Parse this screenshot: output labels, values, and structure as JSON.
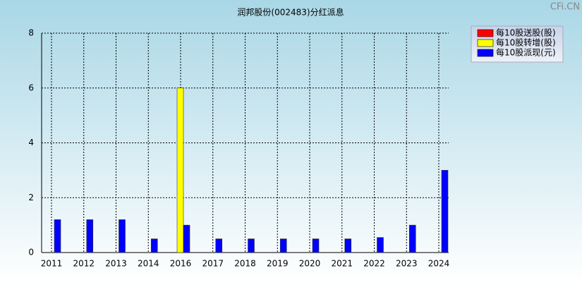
{
  "chart_data": {
    "type": "bar",
    "title": "润邦股份(002483)分红派息",
    "watermark": "CFi.CN",
    "categories": [
      "2011",
      "2012",
      "2013",
      "2014",
      "2016",
      "2017",
      "2018",
      "2019",
      "2020",
      "2021",
      "2022",
      "2023",
      "2024"
    ],
    "series": [
      {
        "name": "每10股送股(股)",
        "color": "#ff0000",
        "values": [
          null,
          null,
          null,
          null,
          null,
          null,
          null,
          null,
          null,
          null,
          null,
          null,
          null
        ]
      },
      {
        "name": "每10股转增(股)",
        "color": "#ffff00",
        "values": [
          null,
          null,
          null,
          null,
          6,
          null,
          null,
          null,
          null,
          null,
          null,
          null,
          null
        ]
      },
      {
        "name": "每10股派现(元)",
        "color": "#0000ff",
        "values": [
          1.2,
          1.2,
          1.2,
          0.5,
          1.0,
          0.5,
          0.5,
          0.5,
          0.5,
          0.5,
          0.55,
          1.0,
          3.0
        ]
      }
    ],
    "ylim": [
      0,
      8
    ],
    "yticks": [
      0,
      2,
      4,
      6,
      8
    ],
    "grid": true,
    "legend": "top-right"
  }
}
